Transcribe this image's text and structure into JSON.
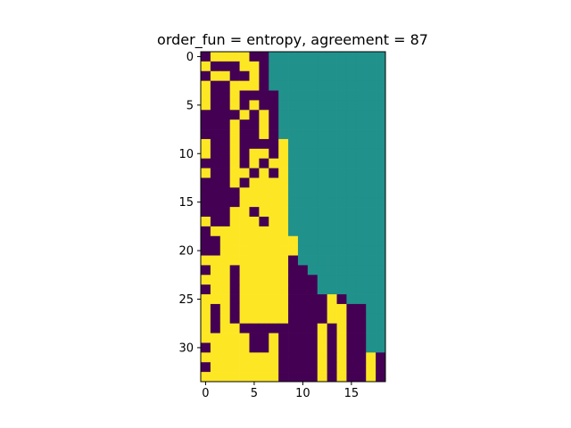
{
  "chart_data": {
    "type": "heatmap",
    "title": "order_fun = entropy, agreement = 87",
    "xlabel": "",
    "ylabel": "",
    "n_rows": 34,
    "n_cols": 19,
    "x_ticks": [
      0,
      5,
      10,
      15
    ],
    "y_ticks": [
      0,
      5,
      10,
      15,
      20,
      25,
      30
    ],
    "value_legend": {
      "0": "dark purple",
      "1": "yellow",
      "2": "teal (unfilled region)"
    },
    "colors": {
      "0": "#440154",
      "1": "#fde725",
      "2": "#21918c"
    },
    "rows": [
      "0111100222222222222",
      "1000110222222222222",
      "0110010222222222222",
      "1001110222222222222",
      "1001000022222222222",
      "1001010022222222222",
      "0000101022222222222",
      "0001001022222222222",
      "0001001022222222222",
      "1001000012222222222",
      "1001011012222222222",
      "0001010112222222222",
      "1001101012222222222",
      "0001011112222222222",
      "0000111112222222222",
      "0000111112222222222",
      "0001101112222222222",
      "1001110112222222222",
      "0111111112222222222",
      "0011111111222222222",
      "0011111111222222222",
      "1111111110222222222",
      "0110111110022222222",
      "1110111110002222222",
      "0110111110002222222",
      "1110111110000102222",
      "1010111110000110022",
      "1010111110000110022",
      "1011000000001010022",
      "1111100100001010022",
      "0111100100001010022",
      "1111111100001010010",
      "0111111100001010010",
      "1111111100001010010"
    ]
  }
}
